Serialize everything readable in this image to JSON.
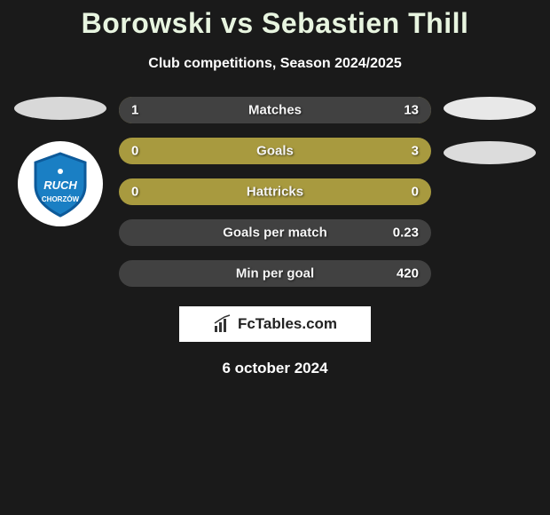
{
  "title": "Borowski vs Sebastien Thill",
  "subtitle": "Club competitions, Season 2024/2025",
  "date": "6 october 2024",
  "brand": "FcTables.com",
  "colors": {
    "bar_base": "#a89a3f",
    "bar_accent": "#414141",
    "ellipse_left": "#d8d8d8",
    "ellipse_right_1": "#e8e8e8",
    "ellipse_right_2": "#dcdcdc",
    "title_color": "#e8f5e0",
    "background": "#1a1a1a"
  },
  "left_badge": {
    "name": "Ruch Chorzów",
    "shield_color": "#1a7fc4",
    "ring_color": "#0d5a9a",
    "text_top": "RUCH",
    "text_bottom": "CHORZÓW"
  },
  "bars": [
    {
      "label": "Matches",
      "left": "1",
      "right": "13",
      "left_pct": 7,
      "right_pct": 93
    },
    {
      "label": "Goals",
      "left": "0",
      "right": "3",
      "left_pct": 0,
      "right_pct": 12
    },
    {
      "label": "Hattricks",
      "left": "0",
      "right": "0",
      "left_pct": 0,
      "right_pct": 0
    },
    {
      "label": "Goals per match",
      "left": "",
      "right": "0.23",
      "left_pct": 0,
      "right_pct": 100
    },
    {
      "label": "Min per goal",
      "left": "",
      "right": "420",
      "left_pct": 0,
      "right_pct": 100
    }
  ]
}
